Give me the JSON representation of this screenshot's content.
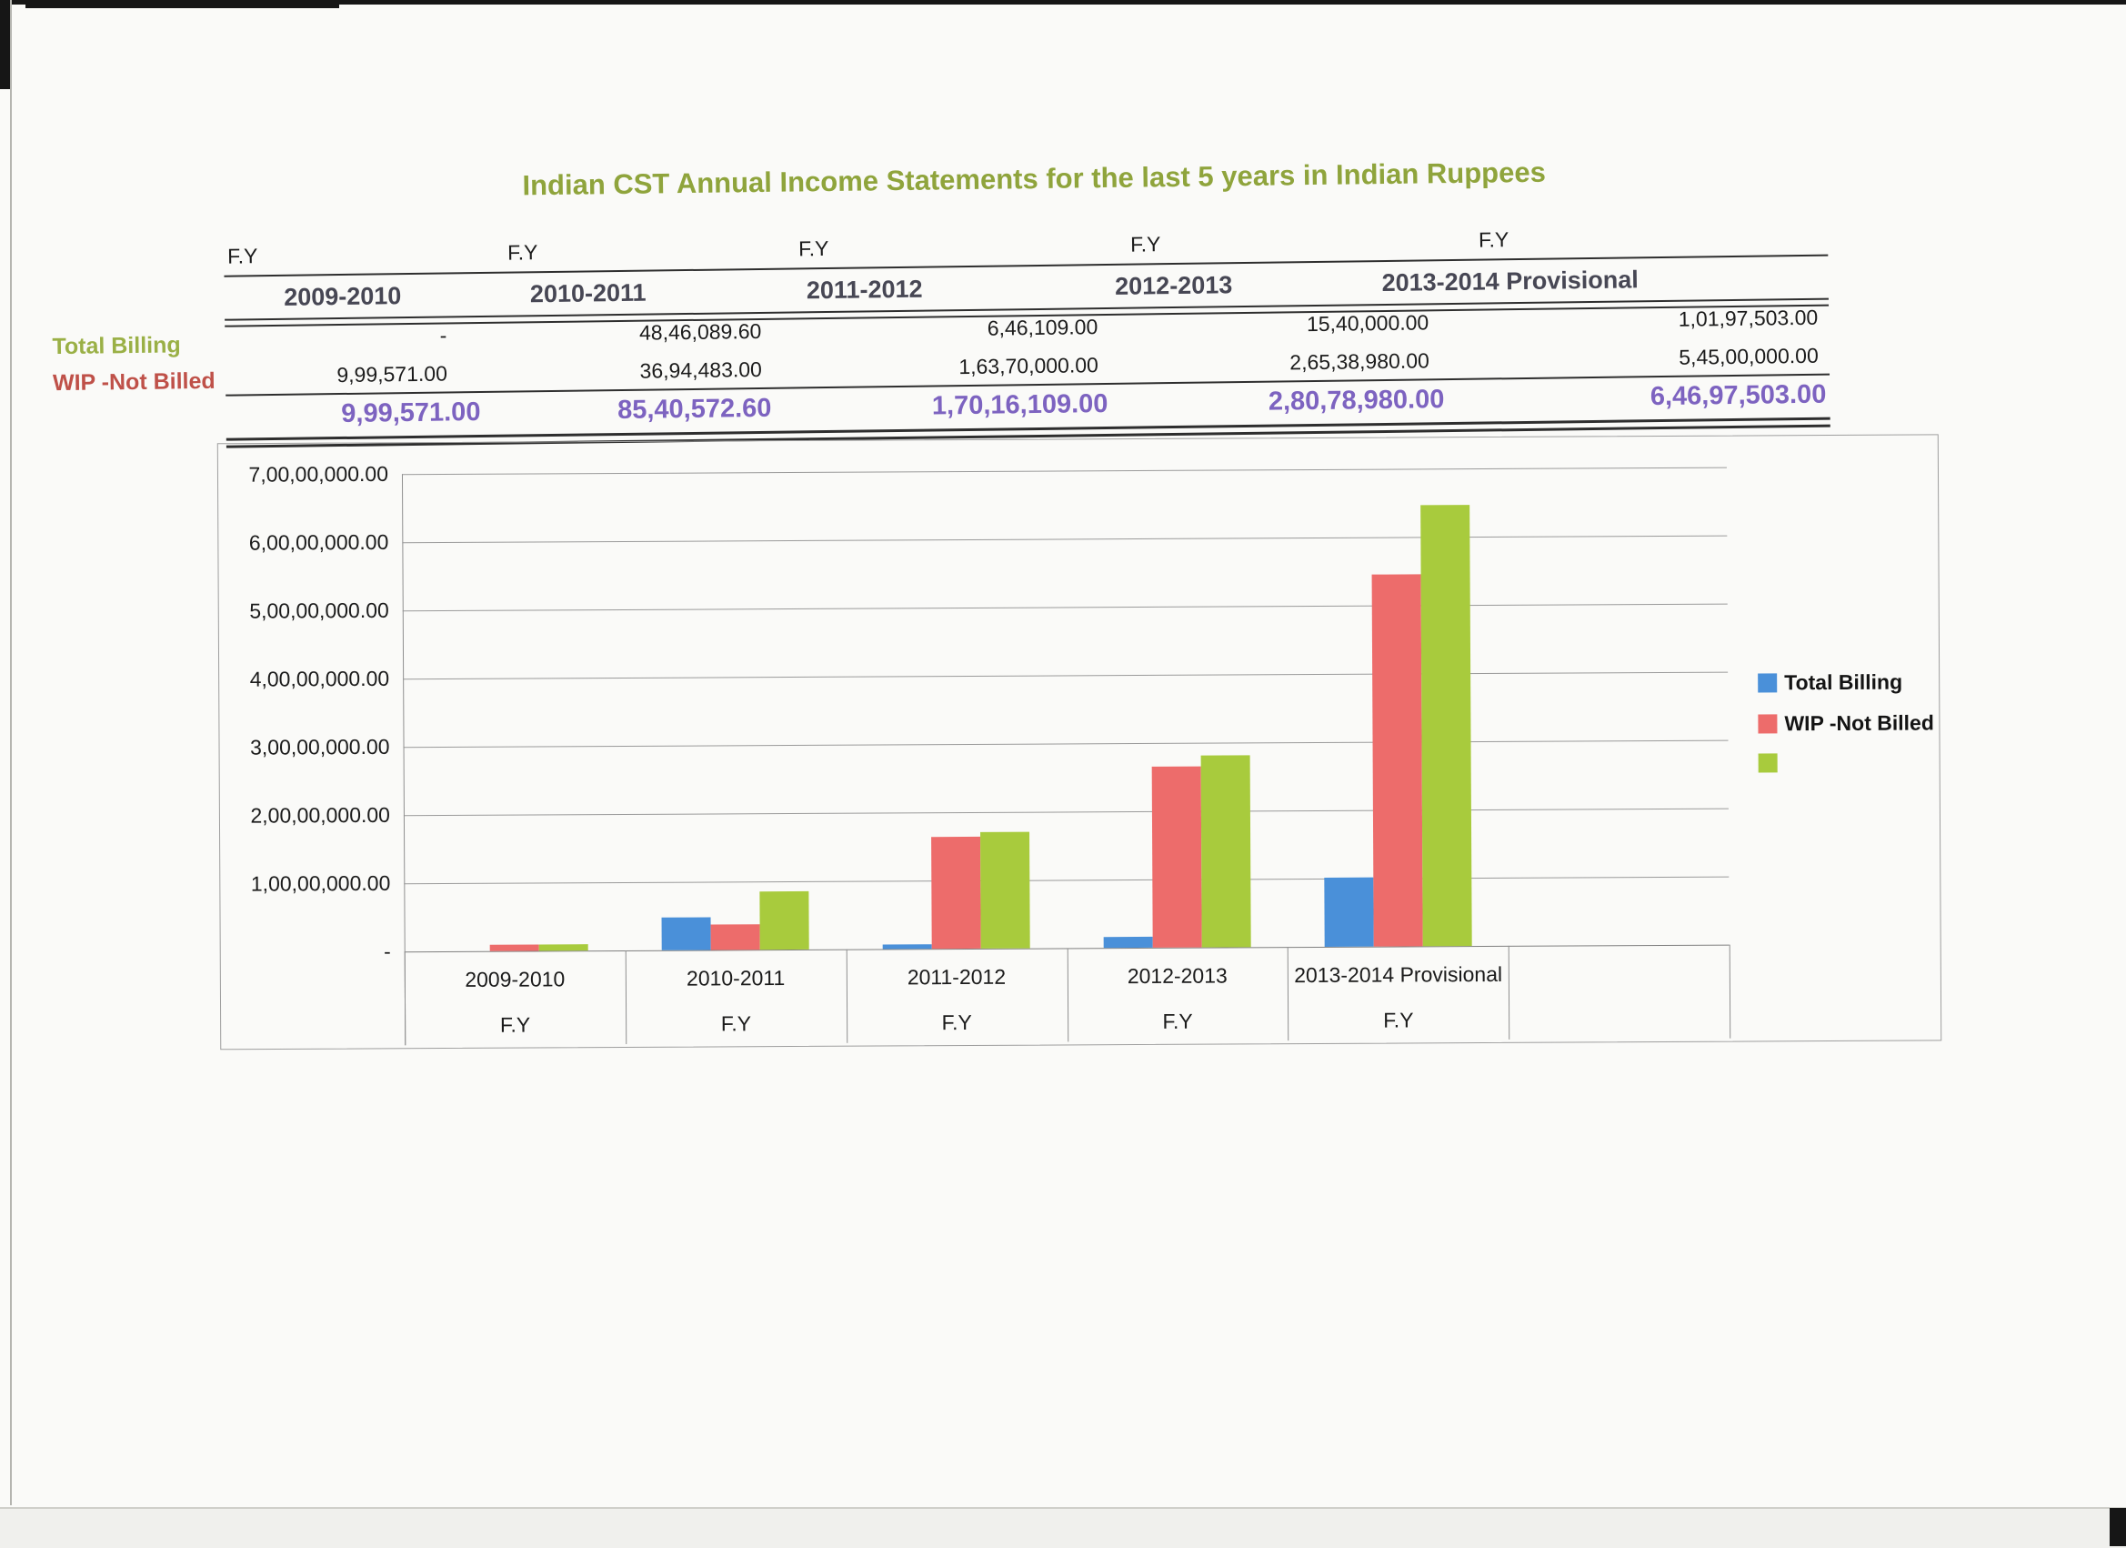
{
  "title": "Indian CST Annual Income Statements for the last 5 years in Indian Ruppees",
  "colors": {
    "title_green": "#8fa43c",
    "total_billing_label": "#9ab046",
    "wip_label": "#bf5149",
    "totals_purple": "#7d63c0",
    "year_header": "#474754",
    "series_blue": "#4a90d9",
    "series_red": "#ed6c6b",
    "series_green": "#a8cb3d"
  },
  "table": {
    "fy_label": "F.Y",
    "columns": [
      "2009-2010",
      "2010-2011",
      "2011-2012",
      "2012-2013",
      "2013-2014 Provisional"
    ],
    "rows": [
      {
        "label": "Total Billing",
        "values": [
          "-",
          "48,46,089.60",
          "6,46,109.00",
          "15,40,000.00",
          "1,01,97,503.00"
        ]
      },
      {
        "label": "WIP -Not Billed",
        "values": [
          "9,99,571.00",
          "36,94,483.00",
          "1,63,70,000.00",
          "2,65,38,980.00",
          "5,45,00,000.00"
        ]
      }
    ],
    "totals": [
      "9,99,571.00",
      "85,40,572.60",
      "1,70,16,109.00",
      "2,80,78,980.00",
      "6,46,97,503.00"
    ]
  },
  "chart_data": {
    "type": "bar",
    "title": "",
    "categories": [
      "2009-2010",
      "2010-2011",
      "2011-2012",
      "2012-2013",
      "2013-2014 Provisional"
    ],
    "category_sub_label": "F.Y",
    "series": [
      {
        "name": "Total Billing",
        "color": "#4a90d9",
        "values": [
          0,
          4846089.6,
          646109.0,
          1540000.0,
          10197503.0
        ]
      },
      {
        "name": "WIP -Not Billed",
        "color": "#ed6c6b",
        "values": [
          999571.0,
          3694483.0,
          16370000.0,
          26538980.0,
          54500000.0
        ]
      },
      {
        "name": "",
        "color": "#a8cb3d",
        "values": [
          999571.0,
          8540572.6,
          17016109.0,
          28078980.0,
          64697503.0
        ]
      }
    ],
    "ylim": [
      0,
      70000000
    ],
    "y_ticks": [
      "7,00,00,000.00",
      "6,00,00,000.00",
      "5,00,00,000.00",
      "4,00,00,000.00",
      "3,00,00,000.00",
      "2,00,00,000.00",
      "1,00,00,000.00",
      "-"
    ],
    "grid": true,
    "legend_position": "right",
    "legend": [
      "Total Billing",
      "WIP -Not Billed",
      ""
    ]
  }
}
